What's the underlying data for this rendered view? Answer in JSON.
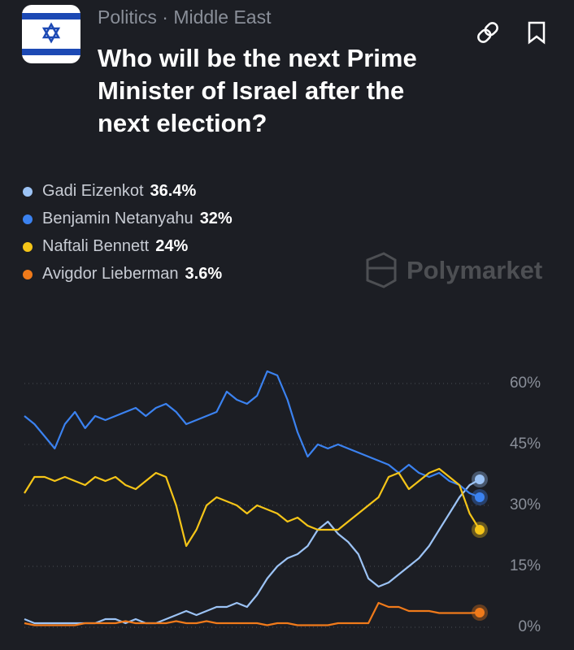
{
  "header": {
    "category": "Politics",
    "subcategory": "Middle East",
    "title": "Who will be the next Prime Minister of Israel after the next election?"
  },
  "watermark": "Polymarket",
  "chart_data": {
    "type": "line",
    "ylim": [
      0,
      66
    ],
    "yticks": [
      {
        "value": 0,
        "label": "0%"
      },
      {
        "value": 15,
        "label": "15%"
      },
      {
        "value": 30,
        "label": "30%"
      },
      {
        "value": 45,
        "label": "45%"
      },
      {
        "value": 60,
        "label": "60%"
      }
    ],
    "grid": true,
    "series": [
      {
        "name": "Gadi Eizenkot",
        "color": "#9cc3f5",
        "current": {
          "value": 36.4,
          "label": "36.4%"
        },
        "values": [
          2,
          1,
          1,
          1,
          1,
          1,
          1,
          1,
          2,
          2,
          1,
          2,
          1,
          1,
          2,
          3,
          4,
          3,
          4,
          5,
          5,
          6,
          5,
          8,
          12,
          15,
          17,
          18,
          20,
          24,
          26,
          23,
          21,
          18,
          12,
          10,
          11,
          13,
          15,
          17,
          20,
          24,
          28,
          32,
          35,
          36.4
        ]
      },
      {
        "name": "Benjamin Netanyahu",
        "color": "#3b82f0",
        "current": {
          "value": 32,
          "label": "32%"
        },
        "values": [
          52,
          50,
          47,
          44,
          50,
          53,
          49,
          52,
          51,
          52,
          53,
          54,
          52,
          54,
          55,
          53,
          50,
          51,
          52,
          53,
          58,
          56,
          55,
          57,
          63,
          62,
          56,
          48,
          42,
          45,
          44,
          45,
          44,
          43,
          42,
          41,
          40,
          38,
          40,
          38,
          37,
          38,
          36,
          35,
          33,
          32
        ]
      },
      {
        "name": "Naftali Bennett",
        "color": "#f5c518",
        "current": {
          "value": 24,
          "label": "24%"
        },
        "values": [
          33,
          37,
          37,
          36,
          37,
          36,
          35,
          37,
          36,
          37,
          35,
          34,
          36,
          38,
          37,
          30,
          20,
          24,
          30,
          32,
          31,
          30,
          28,
          30,
          29,
          28,
          26,
          27,
          25,
          24,
          24,
          24,
          26,
          28,
          30,
          32,
          37,
          38,
          34,
          36,
          38,
          39,
          37,
          35,
          28,
          24
        ]
      },
      {
        "name": "Avigdor Lieberman",
        "color": "#f07a1a",
        "current": {
          "value": 3.6,
          "label": "3.6%"
        },
        "values": [
          1,
          0.5,
          0.5,
          0.5,
          0.5,
          0.5,
          1,
          1,
          1,
          1,
          1.5,
          1,
          1,
          1,
          1,
          1.5,
          1,
          1,
          1.5,
          1,
          1,
          1,
          1,
          1,
          0.5,
          1,
          1,
          0.5,
          0.5,
          0.5,
          0.5,
          1,
          1,
          1,
          1,
          6,
          5,
          5,
          4,
          4,
          4,
          3.5,
          3.5,
          3.5,
          3.5,
          3.6
        ]
      }
    ]
  }
}
